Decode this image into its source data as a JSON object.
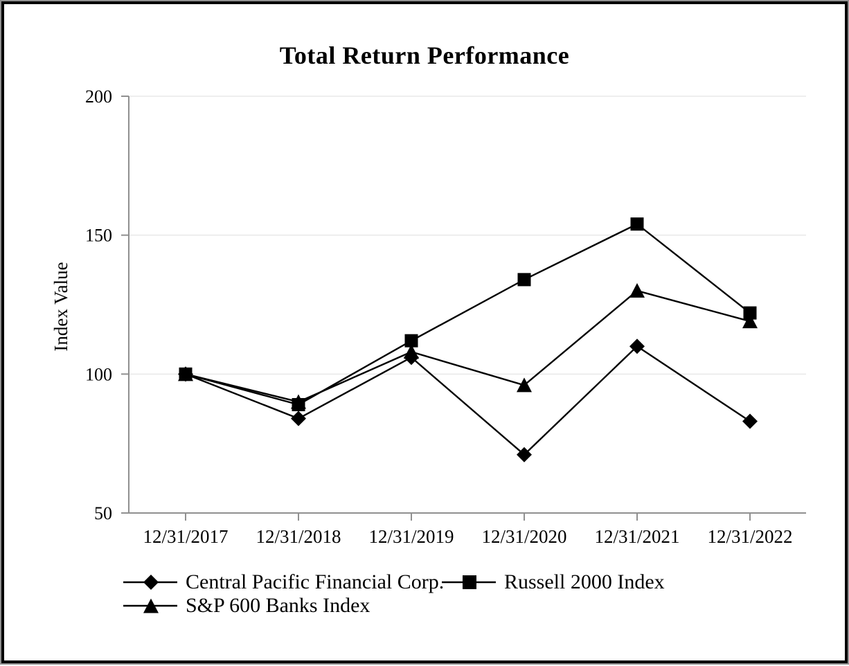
{
  "chart_data": {
    "type": "line",
    "title": "Total Return Performance",
    "ylabel": "Index Value",
    "xlabel": "",
    "ylim": [
      50,
      200
    ],
    "yticks": [
      200,
      150,
      100,
      50
    ],
    "gridline_values": [
      200,
      150,
      100
    ],
    "grid": "horizontal-light",
    "legend_position": "bottom",
    "categories": [
      "12/31/2017",
      "12/31/2018",
      "12/31/2019",
      "12/31/2020",
      "12/31/2021",
      "12/31/2022"
    ],
    "series": [
      {
        "name": "Central Pacific Financial Corp.",
        "marker": "diamond",
        "values": [
          100,
          84,
          106,
          71,
          110,
          83
        ]
      },
      {
        "name": "Russell 2000 Index",
        "marker": "square",
        "values": [
          100,
          89,
          112,
          134,
          154,
          122
        ]
      },
      {
        "name": "S&P 600 Banks Index",
        "marker": "triangle",
        "values": [
          100,
          90,
          108,
          96,
          130,
          119
        ]
      }
    ],
    "colors": {
      "series_line": "#000000",
      "marker_fill": "#000000",
      "axis": "#909090",
      "gridline": "#e8e8e8",
      "text": "#000000"
    }
  }
}
